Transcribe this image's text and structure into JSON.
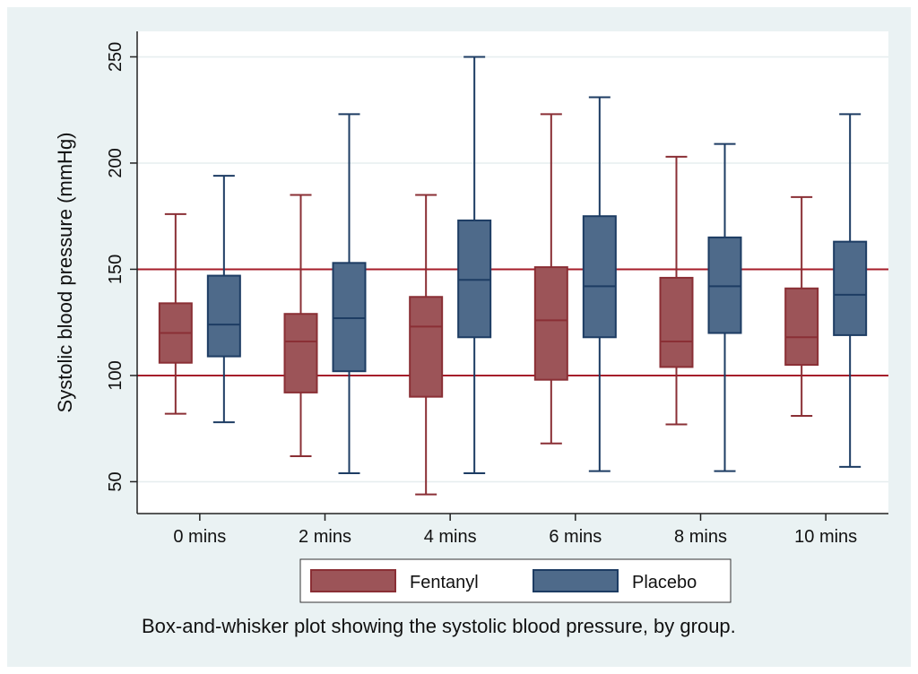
{
  "chart_data": {
    "type": "box",
    "ylabel": "Systolic blood pressure (mmHg)",
    "xlabel": "",
    "ylim": [
      35,
      262
    ],
    "yticks": [
      50,
      100,
      150,
      200,
      250
    ],
    "categories": [
      "0 mins",
      "2 mins",
      "4 mins",
      "6 mins",
      "8 mins",
      "10 mins"
    ],
    "series": [
      {
        "name": "Fentanyl",
        "color": "#9c5458",
        "edge": "#8a2f35",
        "boxes": [
          {
            "min": 82,
            "q1": 106,
            "median": 120,
            "q3": 134,
            "max": 176
          },
          {
            "min": 62,
            "q1": 92,
            "median": 116,
            "q3": 129,
            "max": 185
          },
          {
            "min": 44,
            "q1": 90,
            "median": 123,
            "q3": 137,
            "max": 185
          },
          {
            "min": 68,
            "q1": 98,
            "median": 126,
            "q3": 151,
            "max": 223
          },
          {
            "min": 77,
            "q1": 104,
            "median": 116,
            "q3": 146,
            "max": 203
          },
          {
            "min": 81,
            "q1": 105,
            "median": 118,
            "q3": 141,
            "max": 184
          }
        ]
      },
      {
        "name": "Placebo",
        "color": "#4e6a8a",
        "edge": "#1d3c63",
        "boxes": [
          {
            "min": 78,
            "q1": 109,
            "median": 124,
            "q3": 147,
            "max": 194
          },
          {
            "min": 54,
            "q1": 102,
            "median": 127,
            "q3": 153,
            "max": 223
          },
          {
            "min": 54,
            "q1": 118,
            "median": 145,
            "q3": 173,
            "max": 250
          },
          {
            "min": 55,
            "q1": 118,
            "median": 142,
            "q3": 175,
            "max": 231
          },
          {
            "min": 55,
            "q1": 120,
            "median": 142,
            "q3": 165,
            "max": 209
          },
          {
            "min": 57,
            "q1": 119,
            "median": 138,
            "q3": 163,
            "max": 223
          }
        ]
      }
    ],
    "reference_lines": [
      100,
      150
    ],
    "reference_color": "#a61c2a",
    "grid": true,
    "legend_position": "bottom",
    "caption": "Box-and-whisker plot showing the systolic blood pressure, by group."
  },
  "colors": {
    "background": "#eaf2f3",
    "plot_background": "#ffffff",
    "gridline": "#e6eeef"
  }
}
